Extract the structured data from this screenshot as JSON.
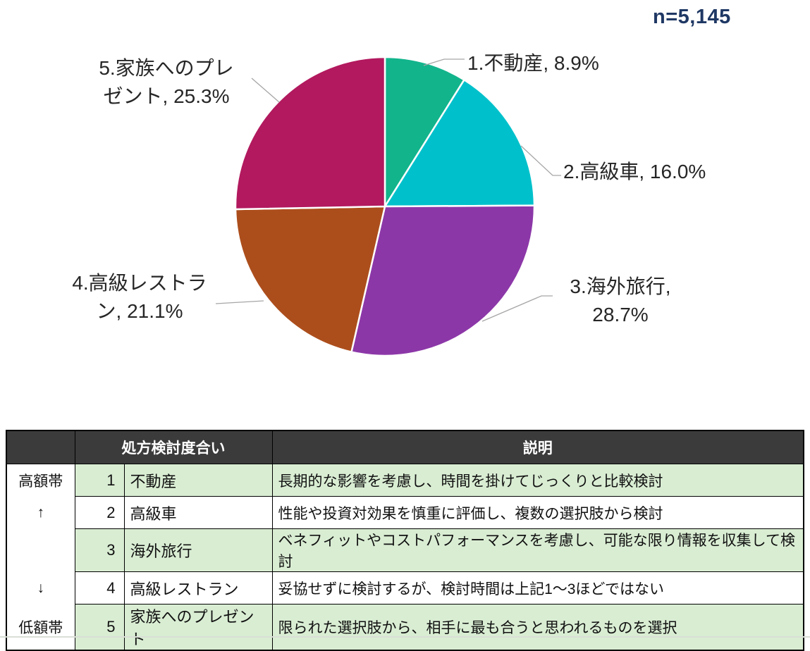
{
  "chart_data": {
    "type": "pie",
    "title": "",
    "sample_size": "n=5,145",
    "direction": "clockwise",
    "start_angle_deg": 0,
    "total": 100,
    "legend_position": "callout-labels",
    "colors": {
      "label_text": "#262626",
      "leader_line": "#a6a6a6",
      "sample_size": "#1f3864",
      "slice_separator": "#ffffff"
    },
    "slices": [
      {
        "rank": 1,
        "name": "不動産",
        "value": 8.9,
        "color": "#12b48c",
        "label_lines": [
          "1.不動産, 8.9%"
        ]
      },
      {
        "rank": 2,
        "name": "高級車",
        "value": 16.0,
        "color": "#00c1cb",
        "label_lines": [
          "2.高級車, 16.0%"
        ]
      },
      {
        "rank": 3,
        "name": "海外旅行",
        "value": 28.7,
        "color": "#8c37a8",
        "label_lines": [
          "3.海外旅行,",
          "28.7%"
        ]
      },
      {
        "rank": 4,
        "name": "高級レストラン",
        "value": 21.1,
        "color": "#ac4e1c",
        "label_lines": [
          "4.高級レストラ",
          "ン, 21.1%"
        ]
      },
      {
        "rank": 5,
        "name": "家族へのプレゼント",
        "value": 25.3,
        "color": "#b2195e",
        "label_lines": [
          "5.家族へのプレ",
          "ゼント, 25.3%"
        ]
      }
    ]
  },
  "table": {
    "headers": {
      "band": "",
      "consideration": "処方検討度合い",
      "description": "説明"
    },
    "colors": {
      "header_bg": "#3b3b3b",
      "header_text": "#ffffff",
      "highlight_bg": "#d9edd3",
      "border": "#000000"
    },
    "rows": [
      {
        "band": "高額帯",
        "rank": "1",
        "item": "不動産",
        "description": "長期的な影響を考慮し、時間を掛けてじっくりと比較検討",
        "highlight": true
      },
      {
        "band": "↑",
        "rank": "2",
        "item": "高級車",
        "description": "性能や投資対効果を慎重に評価し、複数の選択肢から検討",
        "highlight": false
      },
      {
        "band": "",
        "rank": "3",
        "item": "海外旅行",
        "description": "ベネフィットやコストパフォーマンスを考慮し、可能な限り情報を収集して検討",
        "highlight": true
      },
      {
        "band": "↓",
        "rank": "4",
        "item": "高級レストラン",
        "description": "妥協せずに検討するが、検討時間は上記1～3ほどではない",
        "highlight": false
      },
      {
        "band": "低額帯",
        "rank": "5",
        "item": "家族へのプレゼント",
        "description": "限られた選択肢から、相手に最も合うと思われるものを選択",
        "highlight": true
      }
    ]
  }
}
